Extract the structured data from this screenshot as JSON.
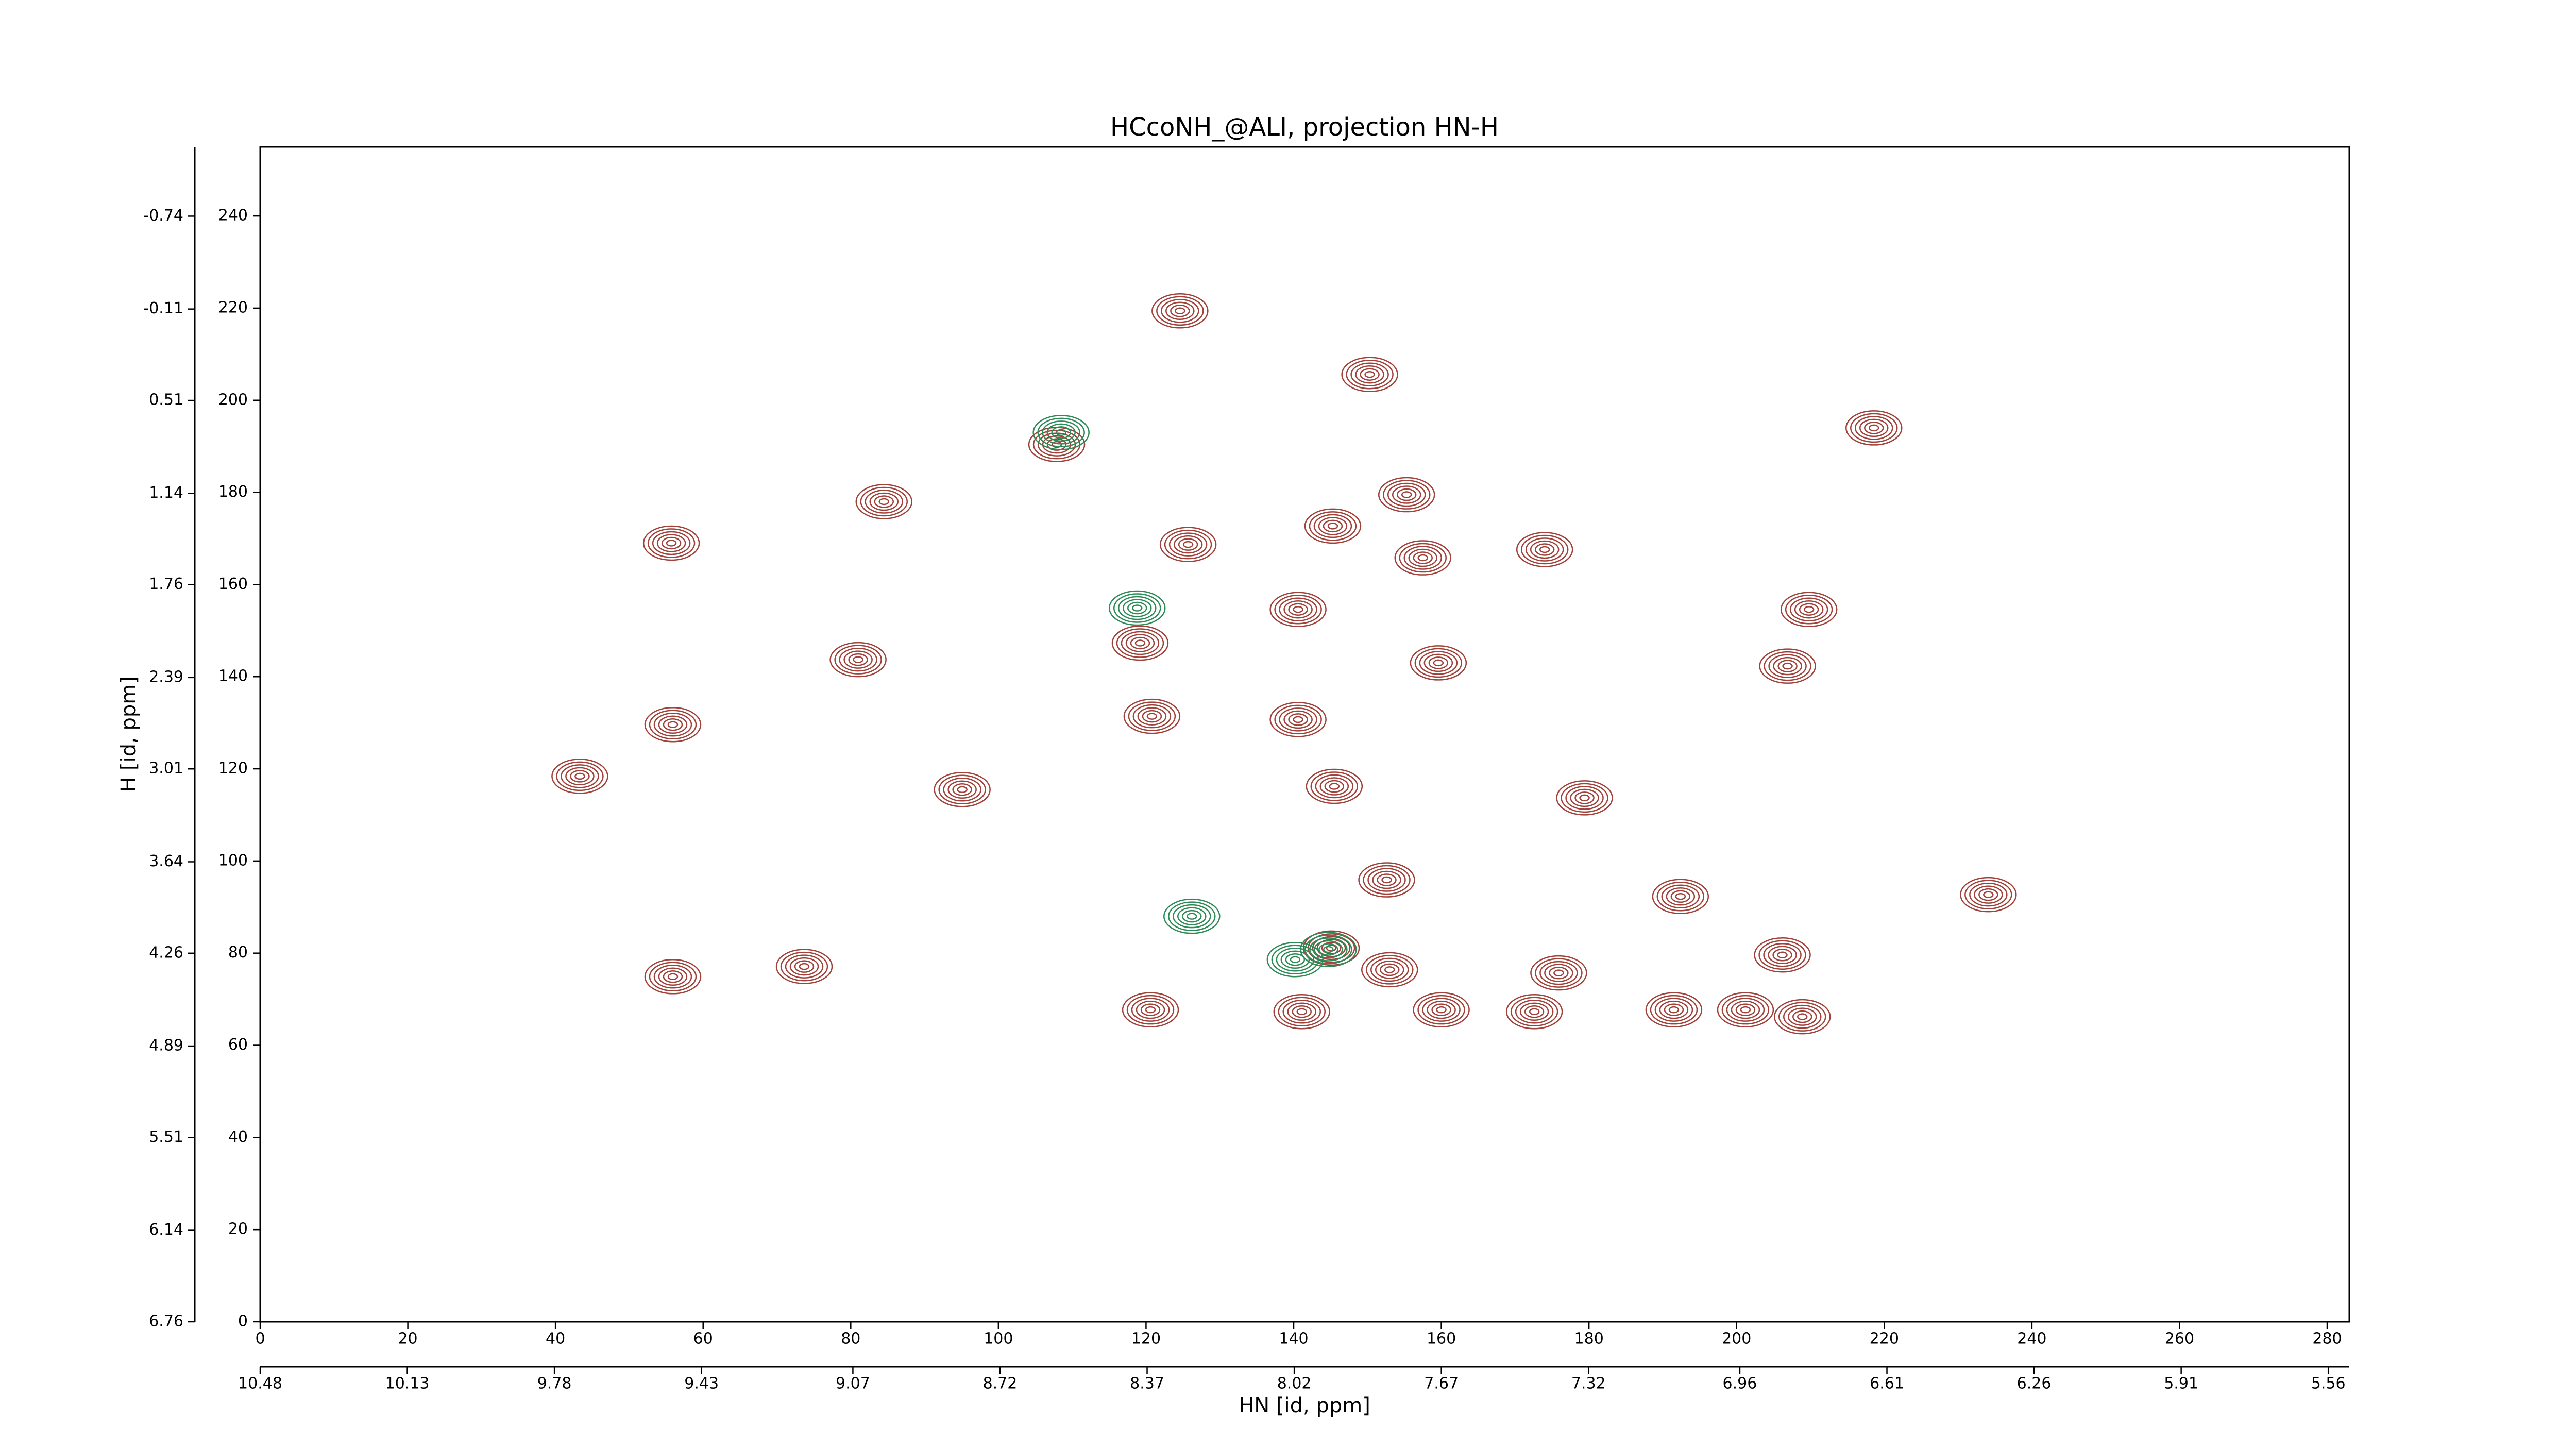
{
  "chart_data": {
    "type": "contour",
    "title": "HCcoNH_@ALI, projection HN-H",
    "xlabel": "HN [id, ppm]",
    "ylabel": "H [id, ppm]",
    "xlim": [
      0,
      283
    ],
    "ylim": [
      0,
      255
    ],
    "xticks": [
      0,
      20,
      40,
      60,
      80,
      100,
      120,
      140,
      160,
      180,
      200,
      220,
      240,
      260,
      280
    ],
    "yticks": [
      0,
      20,
      40,
      60,
      80,
      100,
      120,
      140,
      160,
      180,
      200,
      220,
      240
    ],
    "x2lim": [
      10.48,
      5.51
    ],
    "x2ticks": [
      10.48,
      10.13,
      9.78,
      9.43,
      9.07,
      8.72,
      8.37,
      8.02,
      7.67,
      7.32,
      6.96,
      6.61,
      6.26,
      5.91,
      5.56
    ],
    "y2lim": [
      6.76,
      -1.21
    ],
    "y2ticks": [
      6.76,
      6.14,
      5.51,
      4.89,
      4.26,
      3.64,
      3.01,
      2.39,
      1.76,
      1.14,
      0.51,
      -0.11,
      -0.74
    ],
    "series": [
      {
        "color": "#a0413a",
        "x": [
          124.6,
          150.3,
          218.6,
          107.9,
          84.5,
          155.3,
          55.7,
          125.7,
          145.3,
          157.5,
          174,
          140.6,
          119.2,
          81,
          159.6,
          206.9,
          120.8,
          55.9,
          140.6,
          43.3,
          95.1,
          145.5,
          179.4,
          152.6,
          192.4,
          234.1,
          206.2,
          145.1,
          153,
          73.7,
          55.9,
          191.5,
          120.6,
          141.1,
          160,
          201.2,
          208.9,
          172.6,
          175.9,
          209.8
        ],
        "values": [
          219.4,
          205.6,
          194,
          190.4,
          178,
          179.5,
          169,
          168.7,
          172.7,
          165.8,
          167.6,
          154.6,
          147.3,
          143.7,
          143,
          142.3,
          131.4,
          129.6,
          130.7,
          118.4,
          115.5,
          116.2,
          113.7,
          95.9,
          92.3,
          92.7,
          79.6,
          81.1,
          76.4,
          77.1,
          74.9,
          67.7,
          67.7,
          67.3,
          67.7,
          67.7,
          66.2,
          67.3,
          75.7,
          154.6
        ]
      },
      {
        "color": "#2e8b57",
        "x": [
          118.8,
          144.7,
          126.2,
          108.5,
          140.2
        ],
        "values": [
          154.9,
          80.8,
          88,
          193,
          78.6
        ]
      }
    ]
  }
}
